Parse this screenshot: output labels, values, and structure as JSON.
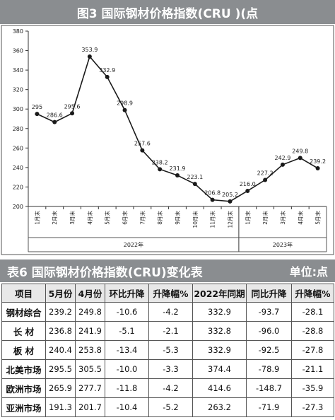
{
  "figure": {
    "banner": "图3   国际钢材价格指数(CRU )(点"
  },
  "chart_data": {
    "type": "line",
    "title": "图3   国际钢材价格指数(CRU )(点",
    "x_labels": [
      "1月末",
      "2月末",
      "3月末",
      "4月末",
      "5月末",
      "6月末",
      "7月末",
      "8月末",
      "9月末",
      "10月末",
      "11月末",
      "12月末",
      "1月末",
      "2月末",
      "3月末",
      "4月末",
      "5月末"
    ],
    "values": [
      295,
      286.6,
      295.6,
      353.9,
      332.9,
      298.9,
      257.6,
      238.2,
      231.9,
      223.1,
      206.8,
      205.2,
      216.0,
      227.2,
      242.9,
      249.8,
      239.2
    ],
    "value_labels": [
      "295",
      "286.6",
      "295.6",
      "353.9",
      "332.9",
      "298.9",
      "257.6",
      "238.2",
      "231.9",
      "223.1",
      "206.8",
      "205.2",
      "216.0",
      "227.2",
      "242.9",
      "249.8",
      "239.2"
    ],
    "y_ticks": [
      200,
      220,
      240,
      260,
      280,
      300,
      320,
      340,
      360,
      380
    ],
    "ylim": [
      200,
      380
    ],
    "year_groups": [
      {
        "label": "2022年",
        "count": 12
      },
      {
        "label": "2023年",
        "count": 5
      }
    ],
    "line_color": "#1a1a1a",
    "grid": false
  },
  "table": {
    "banner_title": "表6  国际钢材价格指数(CRU)变化表",
    "unit": "单位:点",
    "headers": [
      "项目",
      "5月份",
      "4月份",
      "环比升降",
      "升降幅%",
      "2022年同期",
      "同比升降",
      "升降幅%"
    ],
    "rows": [
      [
        "钢材综合",
        "239.2",
        "249.8",
        "-10.6",
        "-4.2",
        "332.9",
        "-93.7",
        "-28.1"
      ],
      [
        "长  材",
        "236.8",
        "241.9",
        "-5.1",
        "-2.1",
        "332.8",
        "-96.0",
        "-28.8"
      ],
      [
        "板  材",
        "240.4",
        "253.8",
        "-13.4",
        "-5.3",
        "332.9",
        "-92.5",
        "-27.8"
      ],
      [
        "北美市场",
        "295.5",
        "305.5",
        "-10.0",
        "-3.3",
        "374.4",
        "-78.9",
        "-21.1"
      ],
      [
        "欧洲市场",
        "265.9",
        "277.7",
        "-11.8",
        "-4.2",
        "414.6",
        "-148.7",
        "-35.9"
      ],
      [
        "亚洲市场",
        "191.3",
        "201.7",
        "-10.4",
        "-5.2",
        "263.2",
        "-71.9",
        "-27.3"
      ]
    ]
  }
}
